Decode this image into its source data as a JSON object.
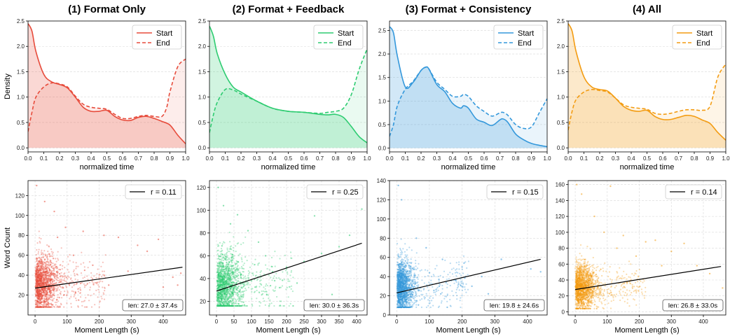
{
  "chart_data": [
    {
      "type": "line",
      "panel": "density",
      "title": "(1) Format Only",
      "xlabel": "normalized time",
      "ylabel": "Density",
      "xlim": [
        0,
        1
      ],
      "ylim": [
        -0.08,
        2.5
      ],
      "yticks": [
        0.0,
        0.5,
        1.0,
        1.5,
        2.0,
        2.5
      ],
      "color": "#e74c3c",
      "legend": "top-right",
      "series": [
        {
          "name": "Start",
          "style": "solid",
          "x": [
            0,
            0.025,
            0.05,
            0.1,
            0.15,
            0.2,
            0.25,
            0.3,
            0.35,
            0.4,
            0.45,
            0.5,
            0.55,
            0.6,
            0.65,
            0.7,
            0.75,
            0.8,
            0.85,
            0.9,
            0.95,
            1.0
          ],
          "y": [
            2.45,
            2.3,
            1.9,
            1.45,
            1.3,
            1.25,
            1.18,
            1.0,
            0.8,
            0.72,
            0.72,
            0.74,
            0.62,
            0.55,
            0.54,
            0.6,
            0.62,
            0.58,
            0.52,
            0.45,
            0.25,
            0.08
          ]
        },
        {
          "name": "End",
          "style": "dashed",
          "x": [
            0,
            0.025,
            0.05,
            0.1,
            0.15,
            0.2,
            0.25,
            0.3,
            0.35,
            0.4,
            0.45,
            0.5,
            0.55,
            0.6,
            0.65,
            0.7,
            0.75,
            0.8,
            0.85,
            0.88,
            0.9,
            0.95,
            1.0
          ],
          "y": [
            0.32,
            0.7,
            1.0,
            1.2,
            1.28,
            1.26,
            1.2,
            1.02,
            0.86,
            0.8,
            0.78,
            0.76,
            0.66,
            0.58,
            0.58,
            0.62,
            0.64,
            0.62,
            0.62,
            0.8,
            1.1,
            1.6,
            1.75
          ]
        }
      ]
    },
    {
      "type": "line",
      "panel": "density",
      "title": "(2) Format + Feedback",
      "xlabel": "normalized time",
      "ylabel": "",
      "xlim": [
        0,
        1
      ],
      "ylim": [
        -0.08,
        2.5
      ],
      "yticks": [
        0.0,
        0.5,
        1.0,
        1.5,
        2.0,
        2.5
      ],
      "color": "#2ecc71",
      "legend": "top-right",
      "series": [
        {
          "name": "Start",
          "style": "solid",
          "x": [
            0,
            0.025,
            0.05,
            0.1,
            0.15,
            0.2,
            0.3,
            0.4,
            0.5,
            0.6,
            0.7,
            0.75,
            0.8,
            0.85,
            0.9,
            0.95,
            1.0
          ],
          "y": [
            2.4,
            2.2,
            1.85,
            1.45,
            1.2,
            1.1,
            0.92,
            0.78,
            0.72,
            0.7,
            0.66,
            0.65,
            0.66,
            0.6,
            0.42,
            0.22,
            0.1
          ]
        },
        {
          "name": "End",
          "style": "dashed",
          "x": [
            0,
            0.025,
            0.05,
            0.1,
            0.15,
            0.2,
            0.3,
            0.4,
            0.5,
            0.6,
            0.7,
            0.75,
            0.8,
            0.85,
            0.9,
            0.95,
            1.0
          ],
          "y": [
            0.3,
            0.65,
            0.9,
            1.15,
            1.14,
            1.06,
            0.92,
            0.78,
            0.72,
            0.7,
            0.68,
            0.7,
            0.72,
            0.78,
            1.05,
            1.55,
            1.95
          ]
        }
      ]
    },
    {
      "type": "line",
      "panel": "density",
      "title": "(3) Format + Consistency",
      "xlabel": "normalized time",
      "ylabel": "",
      "xlim": [
        0,
        1
      ],
      "ylim": [
        -0.08,
        2.7
      ],
      "yticks": [
        0.0,
        0.5,
        1.0,
        1.5,
        2.0,
        2.5
      ],
      "color": "#3498db",
      "legend": "top-right",
      "series": [
        {
          "name": "Start",
          "style": "solid",
          "x": [
            0,
            0.025,
            0.05,
            0.1,
            0.15,
            0.2,
            0.23,
            0.25,
            0.3,
            0.35,
            0.4,
            0.45,
            0.47,
            0.5,
            0.55,
            0.6,
            0.65,
            0.7,
            0.72,
            0.75,
            0.8,
            0.85,
            0.9,
            0.95,
            1.0
          ],
          "y": [
            2.58,
            2.45,
            1.95,
            1.3,
            1.4,
            1.65,
            1.72,
            1.68,
            1.35,
            1.2,
            0.95,
            0.85,
            0.9,
            0.85,
            0.62,
            0.55,
            0.48,
            0.6,
            0.62,
            0.55,
            0.3,
            0.18,
            0.1,
            0.06,
            0.03
          ]
        },
        {
          "name": "End",
          "style": "dashed",
          "x": [
            0,
            0.025,
            0.05,
            0.1,
            0.15,
            0.2,
            0.23,
            0.25,
            0.3,
            0.35,
            0.4,
            0.45,
            0.47,
            0.5,
            0.55,
            0.6,
            0.65,
            0.7,
            0.72,
            0.75,
            0.8,
            0.85,
            0.9,
            0.95,
            1.0
          ],
          "y": [
            0.25,
            0.5,
            0.9,
            1.25,
            1.42,
            1.65,
            1.72,
            1.68,
            1.4,
            1.25,
            1.1,
            1.1,
            1.14,
            1.1,
            0.9,
            0.78,
            0.68,
            0.75,
            0.76,
            0.7,
            0.5,
            0.42,
            0.45,
            0.75,
            1.05
          ]
        }
      ]
    },
    {
      "type": "line",
      "panel": "density",
      "title": "(4) All",
      "xlabel": "normalized time",
      "ylabel": "",
      "xlim": [
        0,
        1
      ],
      "ylim": [
        -0.08,
        2.5
      ],
      "yticks": [
        0.0,
        0.5,
        1.0,
        1.5,
        2.0,
        2.5
      ],
      "color": "#f39c12",
      "legend": "top-right",
      "series": [
        {
          "name": "Start",
          "style": "solid",
          "x": [
            0,
            0.025,
            0.05,
            0.1,
            0.15,
            0.2,
            0.25,
            0.3,
            0.35,
            0.4,
            0.45,
            0.5,
            0.55,
            0.6,
            0.65,
            0.7,
            0.75,
            0.8,
            0.85,
            0.9,
            0.95,
            1.0
          ],
          "y": [
            2.45,
            2.3,
            1.9,
            1.4,
            1.2,
            1.15,
            1.12,
            0.98,
            0.82,
            0.74,
            0.72,
            0.74,
            0.62,
            0.56,
            0.56,
            0.6,
            0.64,
            0.62,
            0.55,
            0.48,
            0.3,
            0.15
          ]
        },
        {
          "name": "End",
          "style": "dashed",
          "x": [
            0,
            0.025,
            0.05,
            0.1,
            0.15,
            0.2,
            0.25,
            0.3,
            0.35,
            0.4,
            0.45,
            0.5,
            0.55,
            0.6,
            0.65,
            0.7,
            0.75,
            0.8,
            0.85,
            0.9,
            0.95,
            1.0
          ],
          "y": [
            0.35,
            0.72,
            0.95,
            1.1,
            1.15,
            1.13,
            1.1,
            0.98,
            0.85,
            0.8,
            0.78,
            0.76,
            0.68,
            0.66,
            0.68,
            0.72,
            0.75,
            0.75,
            0.74,
            0.82,
            1.4,
            1.65
          ]
        }
      ]
    },
    {
      "type": "scatter",
      "panel": "scatter",
      "xlabel": "Moment Length (s)",
      "ylabel": "Word Count",
      "xlim": [
        -22,
        470
      ],
      "ylim": [
        0,
        135
      ],
      "xticks": [
        0,
        100,
        200,
        300,
        400
      ],
      "yticks": [
        20,
        40,
        60,
        80,
        100,
        120
      ],
      "color": "#e74c3c",
      "legend_label": "r = 0.11",
      "annotation": "len: 27.0 ± 37.4s",
      "fit_line": {
        "x": [
          0,
          460
        ],
        "y": [
          27,
          48
        ]
      },
      "sample_points": [
        [
          5,
          130
        ],
        [
          30,
          114
        ],
        [
          150,
          84
        ],
        [
          215,
          80
        ],
        [
          260,
          78
        ],
        [
          320,
          70
        ],
        [
          350,
          64
        ],
        [
          385,
          76
        ],
        [
          430,
          38
        ],
        [
          445,
          30
        ],
        [
          455,
          42
        ],
        [
          400,
          28
        ],
        [
          180,
          50
        ],
        [
          230,
          30
        ],
        [
          290,
          44
        ],
        [
          120,
          60
        ],
        [
          95,
          88
        ],
        [
          70,
          78
        ],
        [
          60,
          104
        ]
      ],
      "cloud": {
        "center_x": 20,
        "center_y": 30
      }
    },
    {
      "type": "scatter",
      "panel": "scatter",
      "xlabel": "Moment Length (s)",
      "ylabel": "",
      "xlim": [
        -20,
        430
      ],
      "ylim": [
        8,
        126
      ],
      "xticks": [
        0,
        50,
        100,
        150,
        200,
        250,
        300,
        350,
        400
      ],
      "yticks": [
        20,
        40,
        60,
        80,
        100,
        120
      ],
      "color": "#2ecc71",
      "legend_label": "r = 0.25",
      "annotation": "len: 30.0 ± 36.3s",
      "fit_line": {
        "x": [
          0,
          415
        ],
        "y": [
          29,
          71
        ]
      },
      "sample_points": [
        [
          5,
          120
        ],
        [
          20,
          104
        ],
        [
          280,
          95
        ],
        [
          415,
          101
        ],
        [
          380,
          78
        ],
        [
          350,
          68
        ],
        [
          300,
          62
        ],
        [
          250,
          55
        ],
        [
          200,
          50
        ],
        [
          160,
          46
        ],
        [
          120,
          72
        ],
        [
          90,
          82
        ],
        [
          60,
          96
        ],
        [
          40,
          88
        ],
        [
          330,
          26
        ],
        [
          390,
          20
        ],
        [
          230,
          36
        ],
        [
          180,
          32
        ],
        [
          140,
          60
        ]
      ],
      "cloud": {
        "center_x": 20,
        "center_y": 32
      }
    },
    {
      "type": "scatter",
      "panel": "scatter",
      "xlabel": "Moment Length (s)",
      "ylabel": "",
      "xlim": [
        -22,
        460
      ],
      "ylim": [
        0,
        140
      ],
      "xticks": [
        0,
        100,
        200,
        300,
        400
      ],
      "yticks": [
        0,
        20,
        40,
        60,
        80,
        100,
        120,
        140
      ],
      "color": "#3498db",
      "legend_label": "r = 0.15",
      "annotation": "len: 19.8 ± 24.6s",
      "fit_line": {
        "x": [
          0,
          440
        ],
        "y": [
          23,
          58
        ]
      },
      "sample_points": [
        [
          5,
          135
        ],
        [
          15,
          120
        ],
        [
          140,
          58
        ],
        [
          200,
          50
        ],
        [
          260,
          40
        ],
        [
          320,
          58
        ],
        [
          410,
          48
        ],
        [
          440,
          45
        ],
        [
          90,
          70
        ],
        [
          60,
          80
        ],
        [
          180,
          36
        ],
        [
          230,
          30
        ],
        [
          280,
          22
        ],
        [
          130,
          30
        ],
        [
          100,
          44
        ]
      ],
      "cloud": {
        "center_x": 14,
        "center_y": 28
      }
    },
    {
      "type": "scatter",
      "panel": "scatter",
      "xlabel": "Moment Length (s)",
      "ylabel": "",
      "xlim": [
        -22,
        470
      ],
      "ylim": [
        -4,
        165
      ],
      "xticks": [
        0,
        100,
        200,
        300,
        400
      ],
      "yticks": [
        0,
        20,
        40,
        60,
        80,
        100,
        120,
        140,
        160
      ],
      "color": "#f39c12",
      "legend_label": "r = 0.14",
      "annotation": "len: 26.8 ± 33.0s",
      "fit_line": {
        "x": [
          0,
          455
        ],
        "y": [
          28,
          57
        ]
      },
      "sample_points": [
        [
          5,
          160
        ],
        [
          20,
          148
        ],
        [
          110,
          158
        ],
        [
          150,
          96
        ],
        [
          220,
          88
        ],
        [
          250,
          90
        ],
        [
          300,
          76
        ],
        [
          340,
          86
        ],
        [
          380,
          58
        ],
        [
          420,
          48
        ],
        [
          460,
          30
        ],
        [
          190,
          70
        ],
        [
          270,
          58
        ],
        [
          130,
          80
        ],
        [
          90,
          100
        ],
        [
          60,
          120
        ]
      ],
      "cloud": {
        "center_x": 18,
        "center_y": 30
      }
    }
  ]
}
